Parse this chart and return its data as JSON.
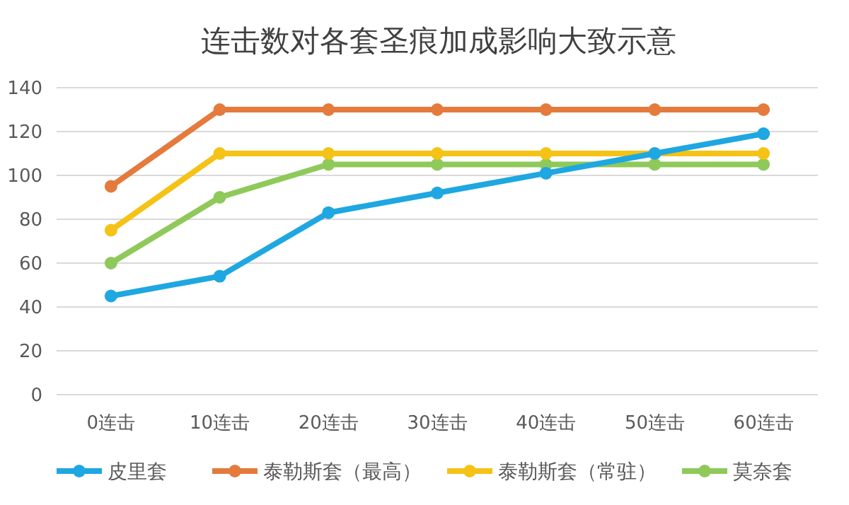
{
  "chart_data": {
    "type": "line",
    "title": "连击数对各套圣痕加成影响大致示意",
    "categories": [
      "0连击",
      "10连击",
      "20连击",
      "30连击",
      "40连击",
      "50连击",
      "60连击"
    ],
    "series": [
      {
        "name": "皮里套",
        "color": "#1ea7e1",
        "values": [
          45,
          54,
          83,
          92,
          101,
          110,
          119
        ]
      },
      {
        "name": "泰勒斯套（最高）",
        "color": "#e47a3c",
        "values": [
          95,
          130,
          130,
          130,
          130,
          130,
          130
        ]
      },
      {
        "name": "泰勒斯套（常驻）",
        "color": "#f5c216",
        "values": [
          75,
          110,
          110,
          110,
          110,
          110,
          110
        ]
      },
      {
        "name": "莫奈套",
        "color": "#8fc95a",
        "values": [
          60,
          90,
          105,
          105,
          105,
          105,
          105
        ]
      }
    ],
    "ylim": [
      0,
      140
    ],
    "yticks": [
      0,
      20,
      40,
      60,
      80,
      100,
      120,
      140
    ],
    "grid": "y",
    "legend": "bottom",
    "marker": "circle",
    "line_style": "solid"
  }
}
